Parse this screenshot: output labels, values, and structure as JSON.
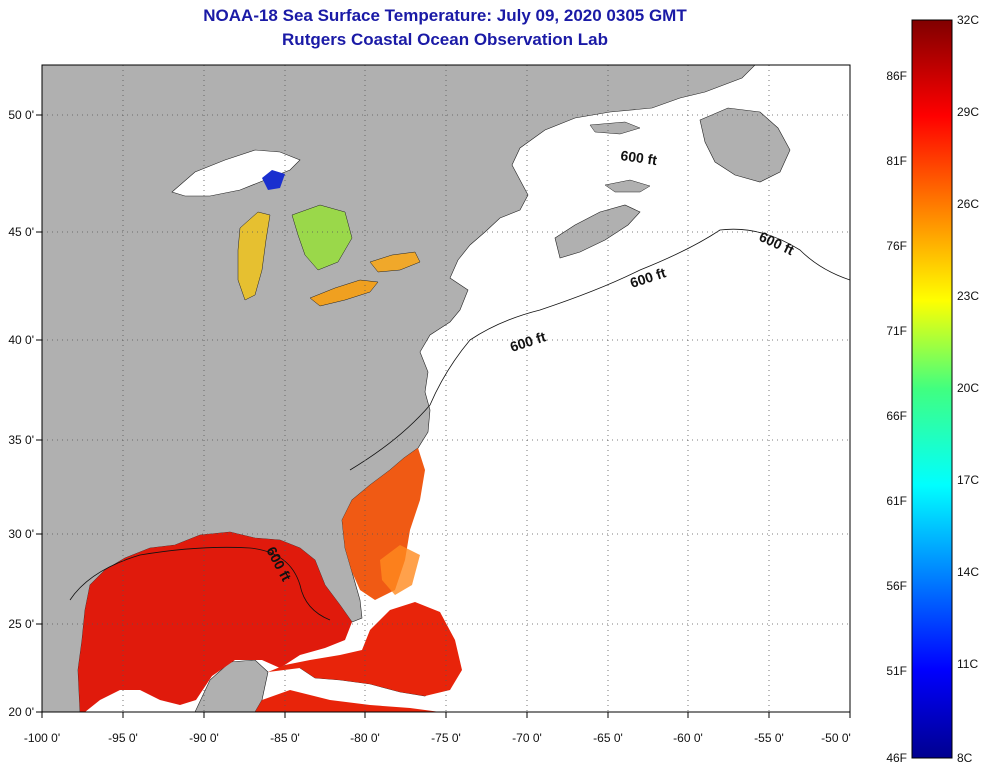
{
  "header": {
    "title": "NOAA-18 Sea Surface Temperature:  July 09, 2020 0305 GMT",
    "subtitle": "Rutgers Coastal Ocean Observation Lab"
  },
  "map": {
    "lon_range": [
      -100,
      -50
    ],
    "lat_range": [
      20,
      52.5
    ],
    "lon_ticks": [
      {
        "value": -100,
        "label": "-100 0'"
      },
      {
        "value": -95,
        "label": "-95 0'"
      },
      {
        "value": -90,
        "label": "-90 0'"
      },
      {
        "value": -85,
        "label": "-85 0'"
      },
      {
        "value": -80,
        "label": "-80 0'"
      },
      {
        "value": -75,
        "label": "-75 0'"
      },
      {
        "value": -70,
        "label": "-70 0'"
      },
      {
        "value": -65,
        "label": "-65 0'"
      },
      {
        "value": -60,
        "label": "-60 0'"
      },
      {
        "value": -55,
        "label": "-55 0'"
      },
      {
        "value": -50,
        "label": "-50 0'"
      }
    ],
    "lat_ticks": [
      {
        "value": 50,
        "label": "50 0'"
      },
      {
        "value": 45,
        "label": "45 0'"
      },
      {
        "value": 40,
        "label": "40 0'"
      },
      {
        "value": 35,
        "label": "35 0'"
      },
      {
        "value": 30,
        "label": "30 0'"
      },
      {
        "value": 25,
        "label": "25 0'"
      },
      {
        "value": 20,
        "label": "20 0'"
      }
    ],
    "isobath_labels": [
      "600 ft",
      "600 ft",
      "600 ft",
      "600 ft",
      "600 ft"
    ],
    "land_color": "#b0b0b0",
    "ocean_nodata_color": "#ffffff",
    "grid": "dotted"
  },
  "colorbar": {
    "celsius_labels": [
      "32C",
      "29C",
      "26C",
      "23C",
      "20C",
      "17C",
      "14C",
      "11C",
      "8C"
    ],
    "fahrenheit_labels": [
      "86F",
      "81F",
      "76F",
      "71F",
      "66F",
      "61F",
      "56F",
      "51F",
      "46F"
    ],
    "colormap": "jet",
    "range_celsius": [
      8,
      32
    ]
  }
}
